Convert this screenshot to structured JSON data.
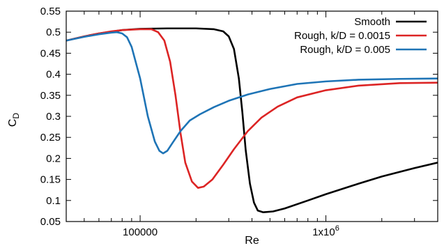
{
  "chart_data": {
    "type": "line",
    "title": "",
    "xlabel": "Re",
    "ylabel": "C",
    "ylabel_subscript": "D",
    "xscale": "log",
    "xlim": [
      40000,
      4000000
    ],
    "ylim": [
      0.05,
      0.55
    ],
    "x_ticks": [
      {
        "value": 100000,
        "label": "100000"
      },
      {
        "value": 1000000,
        "label": "1x10",
        "sup": "6"
      }
    ],
    "y_ticks": [
      {
        "value": 0.05,
        "label": "0.05"
      },
      {
        "value": 0.1,
        "label": "0.1"
      },
      {
        "value": 0.15,
        "label": "0.15"
      },
      {
        "value": 0.2,
        "label": "0.2"
      },
      {
        "value": 0.25,
        "label": "0.25"
      },
      {
        "value": 0.3,
        "label": "0.3"
      },
      {
        "value": 0.35,
        "label": "0.35"
      },
      {
        "value": 0.4,
        "label": "0.4"
      },
      {
        "value": 0.45,
        "label": "0.45"
      },
      {
        "value": 0.5,
        "label": "0.5"
      },
      {
        "value": 0.55,
        "label": "0.55"
      }
    ],
    "grid": false,
    "legend_position": "top-right",
    "series": [
      {
        "name": "Smooth",
        "color": "#000000",
        "points": [
          [
            40000,
            0.48
          ],
          [
            50000,
            0.49
          ],
          [
            60000,
            0.497
          ],
          [
            70000,
            0.501
          ],
          [
            80000,
            0.505
          ],
          [
            100000,
            0.508
          ],
          [
            140000,
            0.509
          ],
          [
            200000,
            0.509
          ],
          [
            250000,
            0.507
          ],
          [
            280000,
            0.502
          ],
          [
            300000,
            0.49
          ],
          [
            320000,
            0.46
          ],
          [
            340000,
            0.39
          ],
          [
            355000,
            0.31
          ],
          [
            370000,
            0.22
          ],
          [
            390000,
            0.14
          ],
          [
            410000,
            0.095
          ],
          [
            430000,
            0.076
          ],
          [
            460000,
            0.072
          ],
          [
            520000,
            0.074
          ],
          [
            600000,
            0.081
          ],
          [
            800000,
            0.1
          ],
          [
            1000000,
            0.115
          ],
          [
            1500000,
            0.14
          ],
          [
            2000000,
            0.157
          ],
          [
            3000000,
            0.177
          ],
          [
            4000000,
            0.19
          ]
        ]
      },
      {
        "name": "Rough, k/D = 0.0015",
        "color": "#dc2424",
        "points": [
          [
            40000,
            0.48
          ],
          [
            50000,
            0.49
          ],
          [
            60000,
            0.497
          ],
          [
            70000,
            0.502
          ],
          [
            80000,
            0.505
          ],
          [
            100000,
            0.507
          ],
          [
            115000,
            0.507
          ],
          [
            125000,
            0.5
          ],
          [
            135000,
            0.48
          ],
          [
            145000,
            0.43
          ],
          [
            155000,
            0.35
          ],
          [
            165000,
            0.26
          ],
          [
            175000,
            0.19
          ],
          [
            190000,
            0.145
          ],
          [
            205000,
            0.13
          ],
          [
            220000,
            0.133
          ],
          [
            245000,
            0.15
          ],
          [
            280000,
            0.185
          ],
          [
            320000,
            0.222
          ],
          [
            380000,
            0.265
          ],
          [
            450000,
            0.297
          ],
          [
            550000,
            0.323
          ],
          [
            700000,
            0.345
          ],
          [
            1000000,
            0.362
          ],
          [
            1500000,
            0.373
          ],
          [
            2500000,
            0.379
          ],
          [
            4000000,
            0.38
          ]
        ]
      },
      {
        "name": "Rough, k/D = 0.005",
        "color": "#1e74b6",
        "points": [
          [
            40000,
            0.48
          ],
          [
            50000,
            0.489
          ],
          [
            60000,
            0.495
          ],
          [
            70000,
            0.499
          ],
          [
            75000,
            0.5
          ],
          [
            80000,
            0.497
          ],
          [
            85000,
            0.488
          ],
          [
            90000,
            0.465
          ],
          [
            100000,
            0.39
          ],
          [
            110000,
            0.3
          ],
          [
            120000,
            0.24
          ],
          [
            127000,
            0.218
          ],
          [
            133000,
            0.212
          ],
          [
            140000,
            0.218
          ],
          [
            150000,
            0.238
          ],
          [
            165000,
            0.265
          ],
          [
            185000,
            0.29
          ],
          [
            210000,
            0.305
          ],
          [
            250000,
            0.322
          ],
          [
            300000,
            0.337
          ],
          [
            380000,
            0.352
          ],
          [
            500000,
            0.365
          ],
          [
            700000,
            0.377
          ],
          [
            1000000,
            0.383
          ],
          [
            1500000,
            0.387
          ],
          [
            2500000,
            0.389
          ],
          [
            4000000,
            0.39
          ]
        ]
      }
    ]
  }
}
